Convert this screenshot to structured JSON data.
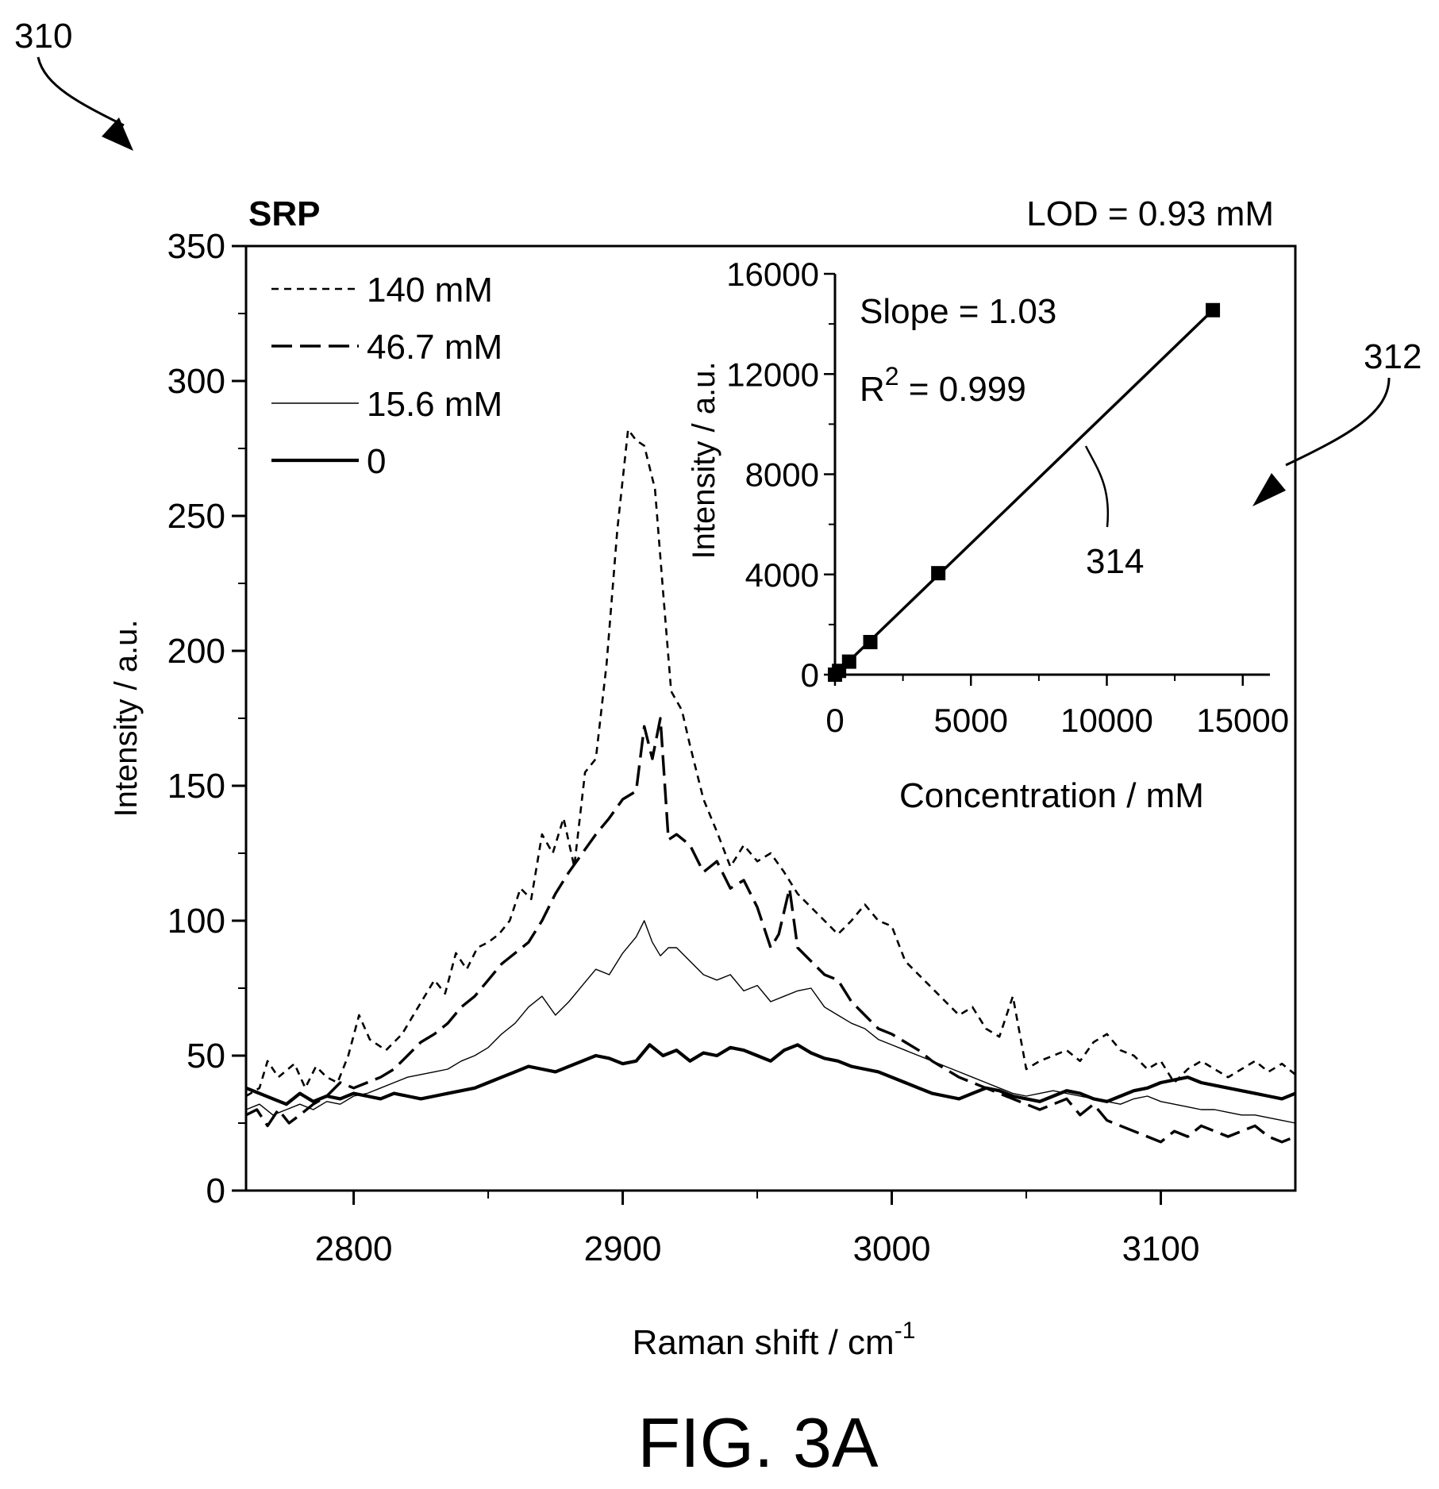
{
  "figure": {
    "ref_main": "310",
    "ref_inset": "312",
    "ref_fit_line": "314",
    "caption": "FIG. 3A",
    "title": "SRP",
    "lod": "LOD = 0.93 mM"
  },
  "chart_data": [
    {
      "type": "line",
      "xlabel": "Raman shift / cm",
      "xlabel_superscript": "-1",
      "ylabel": "Intensity / a.u.",
      "xlim": [
        2760,
        3150
      ],
      "ylim": [
        0,
        350
      ],
      "x_ticks": [
        2800,
        2900,
        3000,
        3100
      ],
      "y_ticks": [
        0,
        50,
        100,
        150,
        200,
        250,
        300,
        350
      ],
      "legend_position": "top-left",
      "series": [
        {
          "name": "140 mM",
          "style": "short-dash",
          "x": [
            2760,
            2765,
            2768,
            2772,
            2778,
            2782,
            2786,
            2790,
            2794,
            2798,
            2802,
            2806,
            2812,
            2818,
            2824,
            2830,
            2834,
            2838,
            2842,
            2846,
            2850,
            2854,
            2858,
            2862,
            2866,
            2870,
            2874,
            2878,
            2882,
            2886,
            2890,
            2894,
            2898,
            2902,
            2905,
            2908,
            2912,
            2915,
            2918,
            2922,
            2925,
            2930,
            2935,
            2940,
            2945,
            2950,
            2955,
            2960,
            2965,
            2970,
            2975,
            2980,
            2985,
            2990,
            2995,
            3000,
            3005,
            3010,
            3015,
            3020,
            3025,
            3030,
            3035,
            3040,
            3045,
            3050,
            3055,
            3060,
            3065,
            3070,
            3075,
            3080,
            3085,
            3090,
            3095,
            3100,
            3105,
            3110,
            3115,
            3120,
            3125,
            3130,
            3135,
            3140,
            3145,
            3150
          ],
          "y": [
            35,
            38,
            48,
            42,
            47,
            38,
            46,
            42,
            40,
            50,
            65,
            56,
            52,
            58,
            68,
            78,
            73,
            88,
            82,
            90,
            92,
            95,
            100,
            112,
            108,
            132,
            125,
            138,
            120,
            155,
            160,
            195,
            245,
            282,
            278,
            276,
            260,
            222,
            185,
            178,
            165,
            145,
            133,
            120,
            128,
            122,
            125,
            118,
            110,
            105,
            100,
            95,
            100,
            106,
            100,
            98,
            85,
            80,
            75,
            70,
            65,
            68,
            60,
            57,
            72,
            45,
            48,
            50,
            52,
            48,
            55,
            58,
            52,
            50,
            45,
            48,
            40,
            45,
            48,
            45,
            42,
            45,
            48,
            44,
            47,
            43
          ]
        },
        {
          "name": "46.7 mM",
          "style": "long-dash",
          "x": [
            2760,
            2764,
            2768,
            2772,
            2776,
            2780,
            2785,
            2790,
            2795,
            2800,
            2805,
            2810,
            2815,
            2820,
            2825,
            2830,
            2835,
            2840,
            2845,
            2850,
            2855,
            2860,
            2865,
            2870,
            2875,
            2880,
            2885,
            2890,
            2895,
            2900,
            2905,
            2908,
            2911,
            2914,
            2917,
            2920,
            2925,
            2930,
            2935,
            2940,
            2945,
            2950,
            2955,
            2958,
            2962,
            2965,
            2970,
            2975,
            2980,
            2985,
            2990,
            2995,
            3000,
            3005,
            3010,
            3015,
            3020,
            3025,
            3030,
            3035,
            3040,
            3045,
            3050,
            3055,
            3060,
            3065,
            3070,
            3075,
            3080,
            3085,
            3090,
            3095,
            3100,
            3105,
            3110,
            3115,
            3120,
            3125,
            3130,
            3135,
            3140,
            3145,
            3150
          ],
          "y": [
            28,
            30,
            24,
            30,
            25,
            28,
            32,
            35,
            40,
            38,
            40,
            42,
            45,
            50,
            55,
            58,
            62,
            68,
            72,
            78,
            84,
            88,
            92,
            100,
            110,
            118,
            125,
            132,
            138,
            145,
            148,
            172,
            160,
            175,
            130,
            132,
            128,
            118,
            122,
            112,
            115,
            105,
            90,
            95,
            112,
            90,
            85,
            80,
            78,
            70,
            65,
            60,
            58,
            55,
            52,
            48,
            45,
            42,
            40,
            38,
            36,
            34,
            32,
            30,
            32,
            34,
            28,
            32,
            26,
            24,
            22,
            20,
            18,
            22,
            20,
            24,
            22,
            20,
            22,
            24,
            20,
            18,
            20
          ]
        },
        {
          "name": "15.6 mM",
          "style": "thin-solid",
          "x": [
            2760,
            2765,
            2770,
            2775,
            2780,
            2785,
            2790,
            2795,
            2800,
            2805,
            2810,
            2815,
            2820,
            2825,
            2830,
            2835,
            2840,
            2845,
            2850,
            2855,
            2860,
            2865,
            2870,
            2875,
            2880,
            2885,
            2890,
            2895,
            2900,
            2905,
            2908,
            2911,
            2914,
            2917,
            2920,
            2925,
            2930,
            2935,
            2940,
            2945,
            2950,
            2955,
            2960,
            2965,
            2970,
            2975,
            2980,
            2985,
            2990,
            2995,
            3000,
            3005,
            3010,
            3015,
            3020,
            3025,
            3030,
            3035,
            3040,
            3045,
            3050,
            3055,
            3060,
            3065,
            3070,
            3075,
            3080,
            3085,
            3090,
            3095,
            3100,
            3105,
            3110,
            3115,
            3120,
            3125,
            3130,
            3135,
            3140,
            3145,
            3150
          ],
          "y": [
            30,
            32,
            28,
            30,
            32,
            30,
            33,
            32,
            35,
            36,
            38,
            40,
            42,
            43,
            44,
            45,
            48,
            50,
            53,
            58,
            62,
            68,
            72,
            65,
            70,
            76,
            82,
            80,
            88,
            94,
            100,
            92,
            87,
            90,
            90,
            85,
            80,
            78,
            80,
            74,
            76,
            70,
            72,
            74,
            75,
            68,
            65,
            62,
            60,
            56,
            54,
            52,
            50,
            48,
            46,
            44,
            42,
            40,
            38,
            36,
            35,
            36,
            37,
            36,
            35,
            34,
            33,
            32,
            34,
            35,
            33,
            32,
            31,
            30,
            30,
            29,
            28,
            28,
            27,
            26,
            25
          ]
        },
        {
          "name": "0",
          "style": "thick-solid",
          "x": [
            2760,
            2765,
            2770,
            2775,
            2780,
            2785,
            2790,
            2795,
            2800,
            2805,
            2810,
            2815,
            2820,
            2825,
            2830,
            2835,
            2840,
            2845,
            2850,
            2855,
            2860,
            2865,
            2870,
            2875,
            2880,
            2885,
            2890,
            2895,
            2900,
            2905,
            2910,
            2915,
            2920,
            2925,
            2930,
            2935,
            2940,
            2945,
            2950,
            2955,
            2960,
            2965,
            2970,
            2975,
            2980,
            2985,
            2990,
            2995,
            3000,
            3005,
            3010,
            3015,
            3020,
            3025,
            3030,
            3035,
            3040,
            3045,
            3050,
            3055,
            3060,
            3065,
            3070,
            3075,
            3080,
            3085,
            3090,
            3095,
            3100,
            3105,
            3110,
            3115,
            3120,
            3125,
            3130,
            3135,
            3140,
            3145,
            3150
          ],
          "y": [
            38,
            36,
            34,
            32,
            36,
            33,
            35,
            34,
            36,
            35,
            34,
            36,
            35,
            34,
            35,
            36,
            37,
            38,
            40,
            42,
            44,
            46,
            45,
            44,
            46,
            48,
            50,
            49,
            47,
            48,
            54,
            50,
            52,
            48,
            51,
            50,
            53,
            52,
            50,
            48,
            52,
            54,
            51,
            49,
            48,
            46,
            45,
            44,
            42,
            40,
            38,
            36,
            35,
            34,
            36,
            38,
            37,
            35,
            34,
            33,
            35,
            37,
            36,
            34,
            33,
            35,
            37,
            38,
            40,
            41,
            42,
            40,
            39,
            38,
            37,
            36,
            35,
            34,
            36
          ]
        }
      ]
    },
    {
      "type": "line",
      "xlabel": "Concentration / mM",
      "ylabel": "Intensity / a.u.",
      "xlim": [
        0,
        16000
      ],
      "ylim": [
        0,
        16000
      ],
      "x_ticks": [
        0,
        5000,
        10000,
        15000
      ],
      "y_ticks": [
        0,
        4000,
        8000,
        12000,
        16000
      ],
      "annotations": [
        "Slope = 1.03",
        "R",
        "2",
        " = 0.999"
      ],
      "series": [
        {
          "marker": "square",
          "x": [
            0,
            150,
            520,
            1300,
            3800,
            13900
          ],
          "y": [
            0,
            150,
            520,
            1300,
            4050,
            14550
          ]
        }
      ]
    }
  ]
}
